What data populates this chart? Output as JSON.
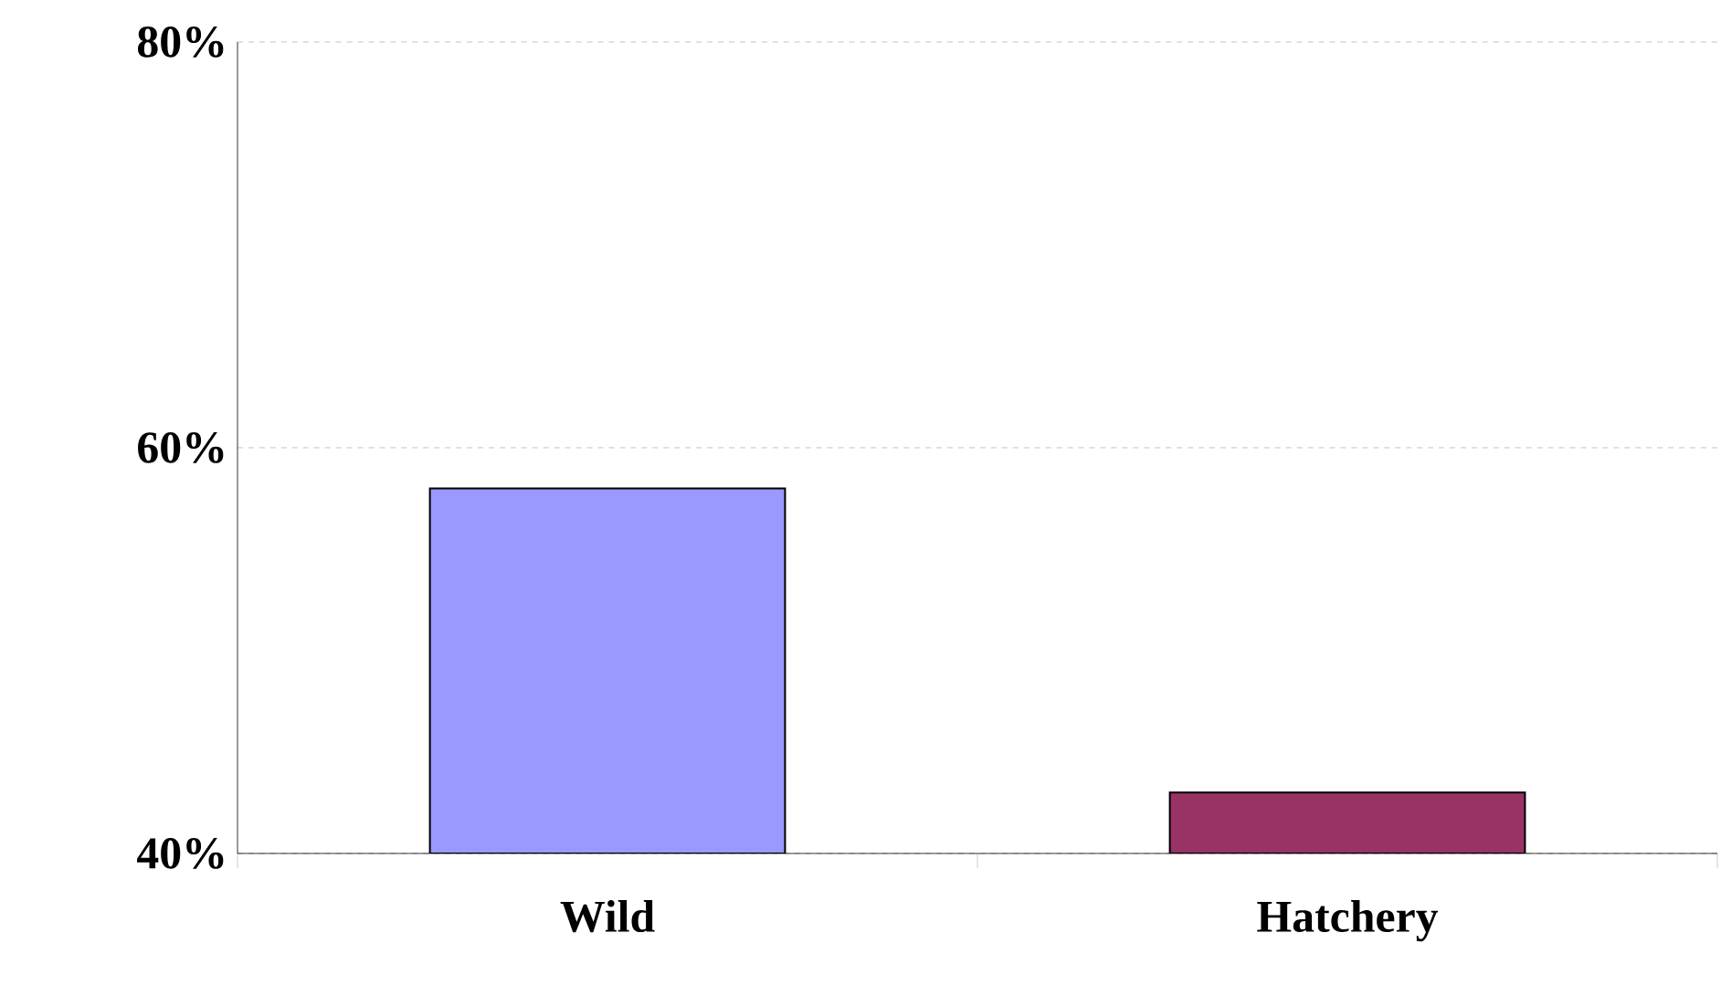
{
  "chart_data": {
    "type": "bar",
    "categories": [
      "Wild",
      "Hatchery"
    ],
    "values": [
      58,
      43
    ],
    "colors": [
      "#9999ff",
      "#993366"
    ],
    "ylim": [
      40,
      80
    ],
    "yticks": [
      {
        "value": 40,
        "label": "40%"
      },
      {
        "value": 60,
        "label": "60%"
      },
      {
        "value": 80,
        "label": "80%"
      }
    ],
    "grid": "y"
  }
}
